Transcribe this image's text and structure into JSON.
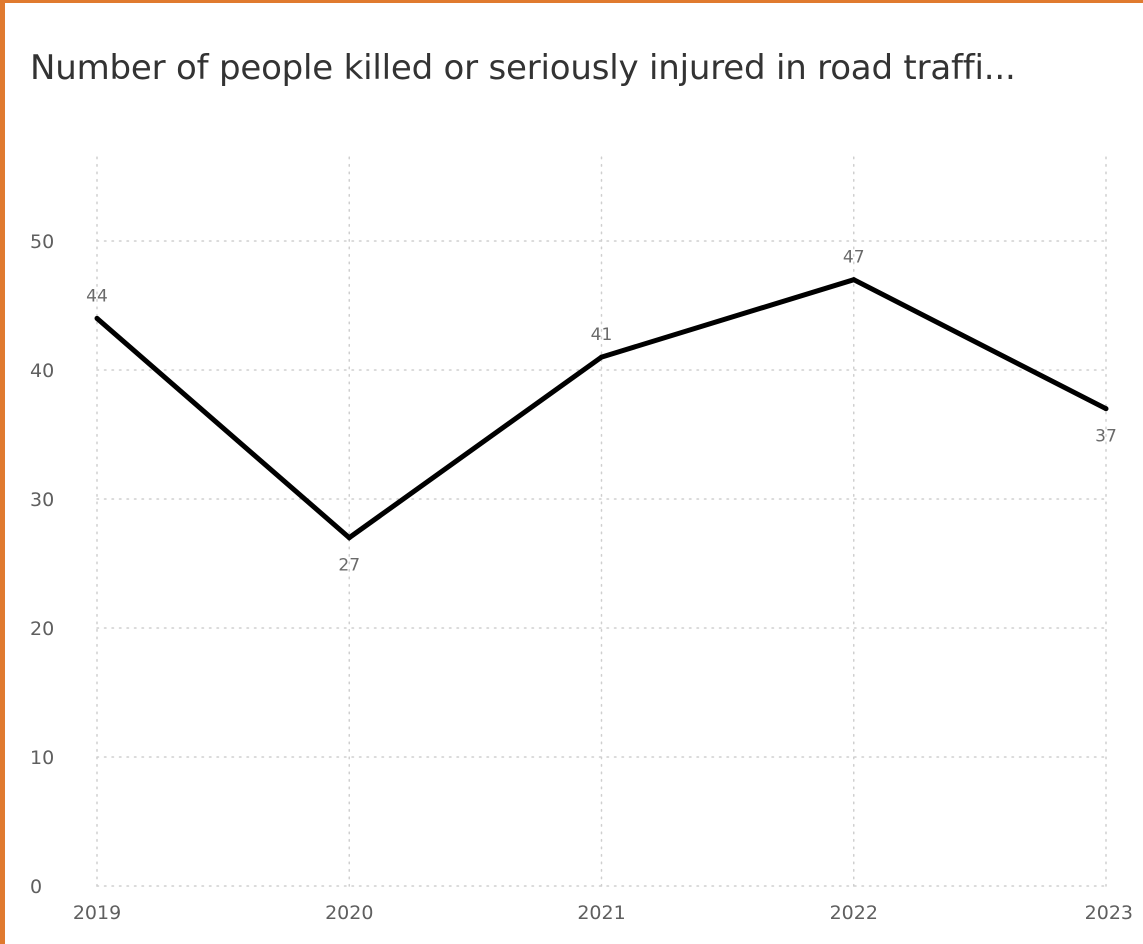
{
  "chart_data": {
    "type": "line",
    "title": "Number of people killed or seriously injured in road traffi...",
    "xlabel": "",
    "ylabel": "",
    "categories": [
      "2019",
      "2020",
      "2021",
      "2022",
      "2023"
    ],
    "series": [
      {
        "values": [
          44,
          27,
          41,
          47,
          37
        ]
      }
    ],
    "data_labels": [
      "44",
      "27",
      "41",
      "47",
      "37"
    ],
    "label_positions": [
      "above",
      "below",
      "above",
      "above",
      "below"
    ],
    "y_ticks": [
      0,
      10,
      20,
      30,
      40,
      50
    ],
    "y_tick_labels": [
      "0",
      "10",
      "20",
      "30",
      "40",
      "50"
    ],
    "ylim": [
      0,
      56.5
    ],
    "grid": "dotted",
    "legend": "none",
    "colors": {
      "line": "#000000",
      "grid": "#cfcfcf",
      "border_accent": "#e07a2f",
      "text": "#5f5f5f"
    }
  }
}
